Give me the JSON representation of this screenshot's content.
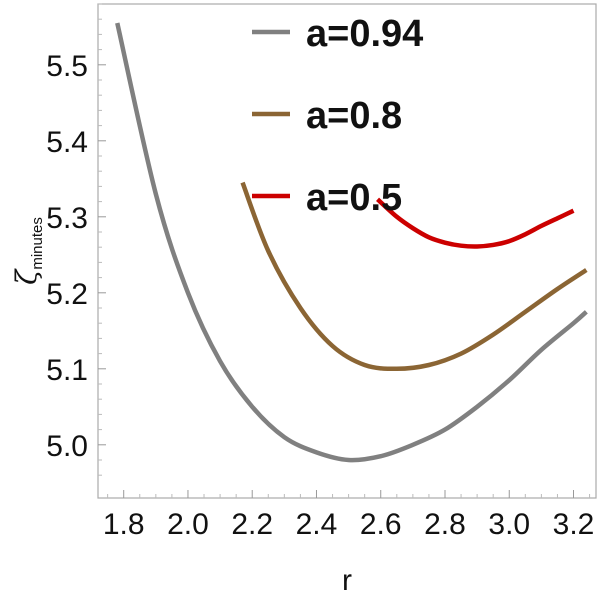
{
  "chart_data": {
    "type": "line",
    "xlabel": "r",
    "ylabel": "ζ",
    "ylabel_subscript": "minutes",
    "xlim": [
      1.72,
      3.27
    ],
    "ylim": [
      4.93,
      5.58
    ],
    "xticks": [
      "1.8",
      "2.0",
      "2.2",
      "2.4",
      "2.6",
      "2.8",
      "3.0",
      "3.2"
    ],
    "yticks": [
      "5.0",
      "5.1",
      "5.2",
      "5.3",
      "5.4",
      "5.5"
    ],
    "legend_position": "top-right",
    "series": [
      {
        "name": "a=0.94",
        "color": "#808080",
        "x": [
          1.78,
          1.9,
          2.0,
          2.1,
          2.2,
          2.3,
          2.4,
          2.5,
          2.6,
          2.7,
          2.8,
          2.9,
          3.0,
          3.1,
          3.2,
          3.24
        ],
        "y": [
          5.555,
          5.33,
          5.2,
          5.11,
          5.05,
          5.01,
          4.99,
          4.98,
          4.985,
          5.0,
          5.02,
          5.05,
          5.085,
          5.125,
          5.16,
          5.175
        ]
      },
      {
        "name": "a=0.8",
        "color": "#8B6534",
        "x": [
          2.17,
          2.25,
          2.35,
          2.45,
          2.55,
          2.65,
          2.75,
          2.85,
          2.95,
          3.05,
          3.15,
          3.24
        ],
        "y": [
          5.345,
          5.255,
          5.18,
          5.13,
          5.105,
          5.1,
          5.105,
          5.12,
          5.145,
          5.175,
          5.205,
          5.23
        ]
      },
      {
        "name": "a=0.5",
        "color": "#CC0000",
        "x": [
          2.59,
          2.65,
          2.7,
          2.75,
          2.8,
          2.85,
          2.9,
          2.95,
          3.0,
          3.05,
          3.1,
          3.15,
          3.2
        ],
        "y": [
          5.323,
          5.3,
          5.285,
          5.273,
          5.266,
          5.262,
          5.261,
          5.263,
          5.268,
          5.277,
          5.288,
          5.298,
          5.308
        ]
      }
    ]
  }
}
